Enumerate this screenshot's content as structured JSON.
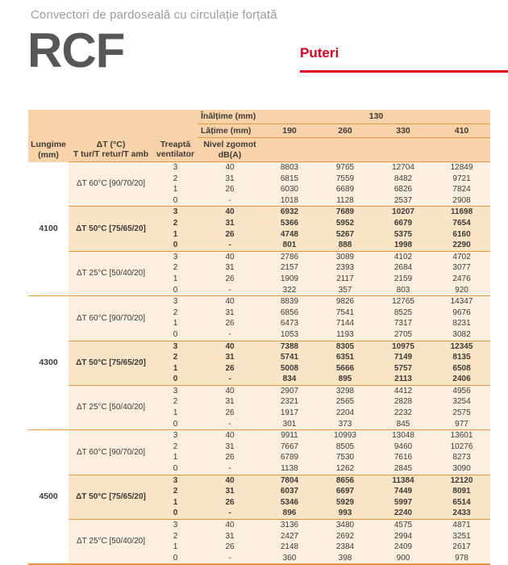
{
  "page": {
    "subtitle": "Convectori de pardoseală cu circulație forțată",
    "product_code": "RCF",
    "section_title": "Puteri"
  },
  "colors": {
    "accent_red": "#e2001a",
    "rule_orange": "#e9973e",
    "header_bg": "#f8d3a9",
    "body_bg": "#fbf0df",
    "highlight_bg": "#f9e4c6",
    "logo_gray": "#575756",
    "subtitle_gray": "#9d9d9c"
  },
  "table": {
    "height_label": "Înălțime (mm)",
    "height_value": "130",
    "width_label": "Lățime (mm)",
    "width_values": [
      "190",
      "260",
      "330",
      "410"
    ],
    "col_headers": {
      "length": "Lungime\n(mm)",
      "dt": "ΔT (°C)\nT tur/T retur/T amb",
      "fan": "Treaptă\nventilator",
      "noise": "Nivel zgomot\ndB(A)"
    },
    "groups": [
      {
        "length": "4100",
        "blocks": [
          {
            "dt": "ΔT 60°C [90/70/20]",
            "highlight": false,
            "rows": [
              [
                "3",
                "40",
                "8803",
                "9765",
                "12704",
                "12849"
              ],
              [
                "2",
                "31",
                "6815",
                "7559",
                "8482",
                "9721"
              ],
              [
                "1",
                "26",
                "6030",
                "6689",
                "6826",
                "7824"
              ],
              [
                "0",
                "-",
                "1018",
                "1128",
                "2537",
                "2908"
              ]
            ]
          },
          {
            "dt": "ΔT 50°C [75/65/20]",
            "highlight": true,
            "rows": [
              [
                "3",
                "40",
                "6932",
                "7689",
                "10207",
                "11698"
              ],
              [
                "2",
                "31",
                "5366",
                "5952",
                "6679",
                "7654"
              ],
              [
                "1",
                "26",
                "4748",
                "5267",
                "5375",
                "6160"
              ],
              [
                "0",
                "-",
                "801",
                "888",
                "1998",
                "2290"
              ]
            ]
          },
          {
            "dt": "ΔT 25°C [50/40/20]",
            "highlight": false,
            "rows": [
              [
                "3",
                "40",
                "2786",
                "3089",
                "4102",
                "4702"
              ],
              [
                "2",
                "31",
                "2157",
                "2393",
                "2684",
                "3077"
              ],
              [
                "1",
                "26",
                "1909",
                "2117",
                "2159",
                "2476"
              ],
              [
                "0",
                "-",
                "322",
                "357",
                "803",
                "920"
              ]
            ]
          }
        ]
      },
      {
        "length": "4300",
        "blocks": [
          {
            "dt": "ΔT 60°C [90/70/20]",
            "highlight": false,
            "rows": [
              [
                "3",
                "40",
                "8839",
                "9826",
                "12765",
                "14347"
              ],
              [
                "2",
                "31",
                "6856",
                "7541",
                "8525",
                "9676"
              ],
              [
                "1",
                "26",
                "6473",
                "7144",
                "7317",
                "8231"
              ],
              [
                "0",
                "-",
                "1053",
                "1193",
                "2705",
                "3082"
              ]
            ]
          },
          {
            "dt": "ΔT 50°C [75/65/20]",
            "highlight": true,
            "rows": [
              [
                "3",
                "40",
                "7388",
                "8305",
                "10975",
                "12345"
              ],
              [
                "2",
                "31",
                "5741",
                "6351",
                "7149",
                "8135"
              ],
              [
                "1",
                "26",
                "5008",
                "5666",
                "5757",
                "6508"
              ],
              [
                "0",
                "-",
                "834",
                "895",
                "2113",
                "2406"
              ]
            ]
          },
          {
            "dt": "ΔT 25°C [50/40/20]",
            "highlight": false,
            "rows": [
              [
                "3",
                "40",
                "2907",
                "3298",
                "4412",
                "4956"
              ],
              [
                "2",
                "31",
                "2321",
                "2565",
                "2828",
                "3254"
              ],
              [
                "1",
                "26",
                "1917",
                "2204",
                "2232",
                "2575"
              ],
              [
                "0",
                "-",
                "301",
                "373",
                "845",
                "977"
              ]
            ]
          }
        ]
      },
      {
        "length": "4500",
        "blocks": [
          {
            "dt": "ΔT 60°C [90/70/20]",
            "highlight": false,
            "rows": [
              [
                "3",
                "40",
                "9911",
                "10993",
                "13048",
                "13601"
              ],
              [
                "2",
                "31",
                "7667",
                "8505",
                "9460",
                "10276"
              ],
              [
                "1",
                "26",
                "6789",
                "7530",
                "7616",
                "8273"
              ],
              [
                "0",
                "-",
                "1138",
                "1262",
                "2845",
                "3090"
              ]
            ]
          },
          {
            "dt": "ΔT 50°C [75/65/20]",
            "highlight": true,
            "rows": [
              [
                "3",
                "40",
                "7804",
                "8656",
                "11384",
                "12120"
              ],
              [
                "2",
                "31",
                "6037",
                "6697",
                "7449",
                "8091"
              ],
              [
                "1",
                "26",
                "5346",
                "5929",
                "5997",
                "6514"
              ],
              [
                "0",
                "-",
                "896",
                "993",
                "2240",
                "2433"
              ]
            ]
          },
          {
            "dt": "ΔT 25°C [50/40/20]",
            "highlight": false,
            "rows": [
              [
                "3",
                "40",
                "3136",
                "3480",
                "4575",
                "4871"
              ],
              [
                "2",
                "31",
                "2427",
                "2692",
                "2994",
                "3251"
              ],
              [
                "1",
                "26",
                "2148",
                "2384",
                "2409",
                "2617"
              ],
              [
                "0",
                "-",
                "360",
                "398",
                "900",
                "978"
              ]
            ]
          }
        ]
      }
    ]
  }
}
